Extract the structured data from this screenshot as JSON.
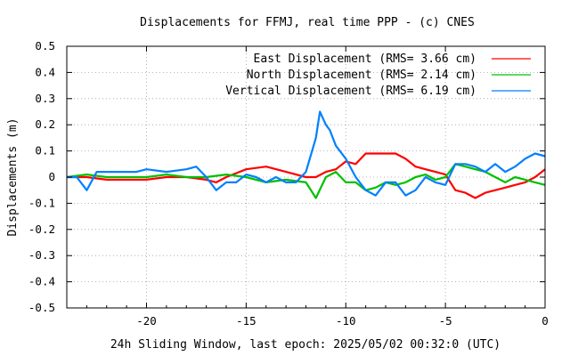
{
  "chart_data": {
    "type": "line",
    "title": "Displacements for FFMJ, real time PPP - (c) CNES",
    "xlabel": "24h Sliding Window, last epoch: 2025/05/02 00:32:0 (UTC)",
    "ylabel": "Displacements (m)",
    "xlim": [
      -24,
      0
    ],
    "ylim": [
      -0.5,
      0.5
    ],
    "x_ticks": [
      -20,
      -15,
      -10,
      -5,
      0
    ],
    "x_tick_labels": [
      "-20",
      "-15",
      "-10",
      "-5",
      "0"
    ],
    "y_ticks": [
      -0.5,
      -0.4,
      -0.3,
      -0.2,
      -0.1,
      0,
      0.1,
      0.2,
      0.3,
      0.4,
      0.5
    ],
    "y_tick_labels": [
      "-0.5",
      "-0.4",
      "-0.3",
      "-0.2",
      "-0.1",
      "0",
      "0.1",
      "0.2",
      "0.3",
      "0.4",
      "0.5"
    ],
    "grid": true,
    "legend_position": "top-right",
    "series": [
      {
        "name": "East Displacement (RMS= 3.66 cm)",
        "color": "#ff0000",
        "x": [
          -24,
          -23,
          -22,
          -21,
          -20,
          -19,
          -18,
          -17,
          -16.5,
          -16,
          -15,
          -14,
          -13,
          -12,
          -11.5,
          -11,
          -10.5,
          -10,
          -9.5,
          -9,
          -8.5,
          -8,
          -7.5,
          -7,
          -6.5,
          -6,
          -5.5,
          -5,
          -4.5,
          -4,
          -3.5,
          -3,
          -2.5,
          -2,
          -1.5,
          -1,
          -0.5,
          0
        ],
        "y": [
          0.0,
          0.0,
          -0.01,
          -0.01,
          -0.01,
          0.0,
          0.0,
          -0.01,
          -0.02,
          0.0,
          0.03,
          0.04,
          0.02,
          0.0,
          0.0,
          0.02,
          0.03,
          0.06,
          0.05,
          0.09,
          0.09,
          0.09,
          0.09,
          0.07,
          0.04,
          0.03,
          0.02,
          0.01,
          -0.05,
          -0.06,
          -0.08,
          -0.06,
          -0.05,
          -0.04,
          -0.03,
          -0.02,
          0.0,
          0.03
        ]
      },
      {
        "name": "North Displacement (RMS= 2.14 cm)",
        "color": "#00c000",
        "x": [
          -24,
          -23,
          -22,
          -21,
          -20,
          -19,
          -18,
          -17,
          -16,
          -15,
          -14,
          -13,
          -12,
          -11.5,
          -11,
          -10.5,
          -10,
          -9.5,
          -9,
          -8.5,
          -8,
          -7.5,
          -7,
          -6.5,
          -6,
          -5.5,
          -5,
          -4.5,
          -4,
          -3.5,
          -3,
          -2.5,
          -2,
          -1.5,
          -1,
          -0.5,
          0
        ],
        "y": [
          0.0,
          0.01,
          0.0,
          0.0,
          0.0,
          0.01,
          0.0,
          0.0,
          0.01,
          0.0,
          -0.02,
          -0.01,
          -0.02,
          -0.08,
          0.0,
          0.02,
          -0.02,
          -0.02,
          -0.05,
          -0.04,
          -0.02,
          -0.03,
          -0.02,
          0.0,
          0.01,
          -0.01,
          0.0,
          0.05,
          0.04,
          0.03,
          0.02,
          0.0,
          -0.02,
          0.0,
          -0.01,
          -0.02,
          -0.03
        ]
      },
      {
        "name": "Vertical Displacement (RMS= 6.19 cm)",
        "color": "#0080ff",
        "x": [
          -24,
          -23.5,
          -23,
          -22.5,
          -22,
          -21.5,
          -21,
          -20.5,
          -20,
          -19,
          -18,
          -17.5,
          -17,
          -16.5,
          -16,
          -15.5,
          -15,
          -14.5,
          -14,
          -13.5,
          -13,
          -12.5,
          -12,
          -11.5,
          -11.3,
          -11,
          -10.8,
          -10.5,
          -10,
          -9.5,
          -9,
          -8.5,
          -8,
          -7.5,
          -7,
          -6.5,
          -6,
          -5.5,
          -5,
          -4.5,
          -4,
          -3.5,
          -3,
          -2.5,
          -2,
          -1.5,
          -1,
          -0.5,
          0
        ],
        "y": [
          0.0,
          0.0,
          -0.05,
          0.02,
          0.02,
          0.02,
          0.02,
          0.02,
          0.03,
          0.02,
          0.03,
          0.04,
          0.0,
          -0.05,
          -0.02,
          -0.02,
          0.01,
          0.0,
          -0.02,
          0.0,
          -0.02,
          -0.02,
          0.02,
          0.15,
          0.25,
          0.2,
          0.18,
          0.12,
          0.07,
          0.0,
          -0.05,
          -0.07,
          -0.02,
          -0.02,
          -0.07,
          -0.05,
          0.0,
          -0.02,
          -0.03,
          0.05,
          0.05,
          0.04,
          0.02,
          0.05,
          0.02,
          0.04,
          0.07,
          0.09,
          0.08
        ]
      }
    ]
  }
}
